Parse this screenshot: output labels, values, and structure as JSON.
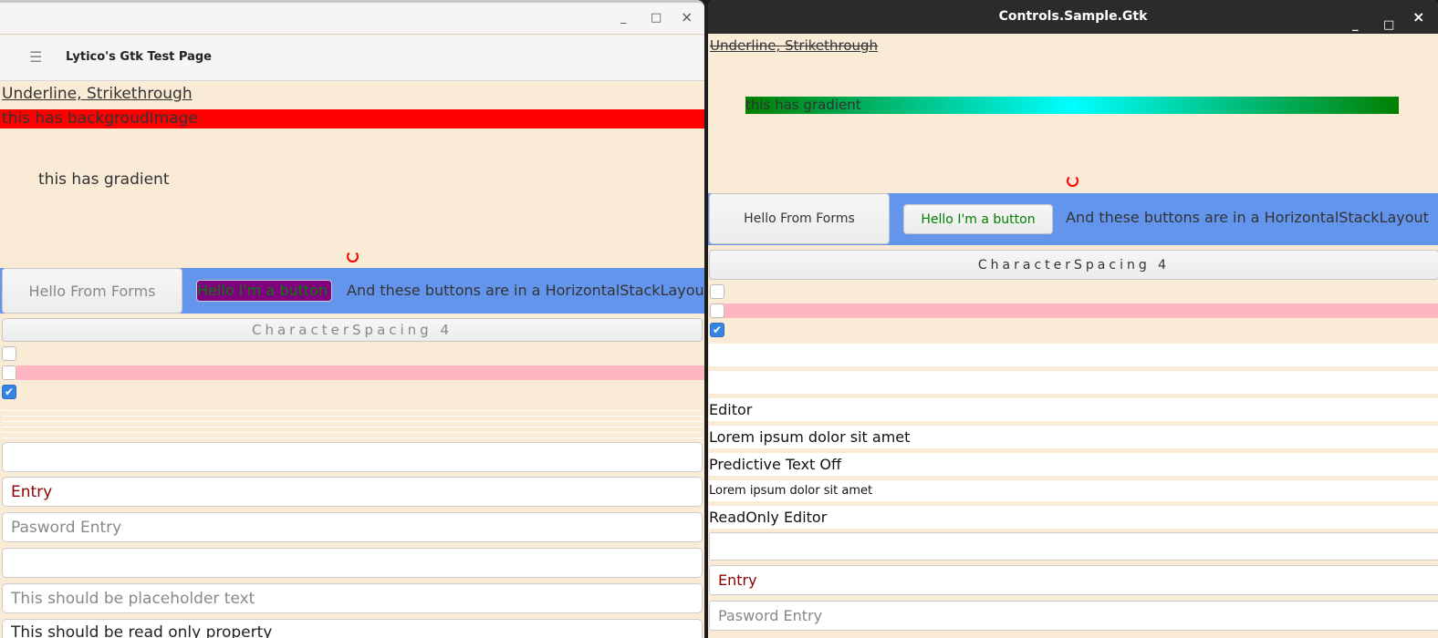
{
  "left_window": {
    "header_title": "Lytico's Gtk Test Page",
    "menu_icon": "hamburger-icon",
    "controls": {
      "minimize": "_",
      "maximize": "□",
      "close": "×"
    },
    "underline_label": "Underline, Strikethrough",
    "background_image_label": "this has backgroudImage",
    "gradient_label": "this has gradient",
    "buttons": {
      "forms": "Hello From Forms",
      "button": "Hello I'm a button",
      "stack_text": "And these buttons are in a HorizontalStackLayout"
    },
    "char_spacing_button": "CharacterSpacing 4",
    "checkboxes": [
      false,
      false,
      true
    ],
    "entries": [
      {
        "value": "",
        "placeholder": ""
      },
      {
        "value": "Entry",
        "placeholder": ""
      },
      {
        "value": "",
        "placeholder": "Pasword Entry"
      },
      {
        "value": "",
        "placeholder": ""
      },
      {
        "value": "",
        "placeholder": "This should be placeholder text"
      },
      {
        "value": "This should be read only property",
        "placeholder": ""
      }
    ]
  },
  "right_window": {
    "title": "Controls.Sample.Gtk",
    "controls": {
      "minimize": "_",
      "maximize": "□",
      "close": "×"
    },
    "underline_label": "Underline, Strikethrough",
    "gradient_label": "this has gradient",
    "buttons": {
      "forms": "Hello From Forms",
      "button": "Hello I'm a button",
      "stack_text": "And these buttons are in a HorizontalStackLayout"
    },
    "char_spacing_button": "CharacterSpacing 4",
    "checkboxes": [
      false,
      false,
      true
    ],
    "editors": [
      "",
      "",
      "Editor",
      "Lorem ipsum dolor sit amet",
      "Predictive Text Off",
      "Lorem ipsum dolor sit amet",
      "ReadOnly Editor"
    ],
    "entries": [
      {
        "value": "",
        "placeholder": ""
      },
      {
        "value": "Entry",
        "placeholder": ""
      },
      {
        "value": "",
        "placeholder": "Pasword Entry"
      }
    ]
  },
  "colors": {
    "page_bg": "#faebd7",
    "red": "#ff0000",
    "stack_bg": "#6495ed",
    "purple": "#800080",
    "green": "#008000",
    "pink": "#ffb6c1",
    "entry_text": "#8b0000"
  }
}
